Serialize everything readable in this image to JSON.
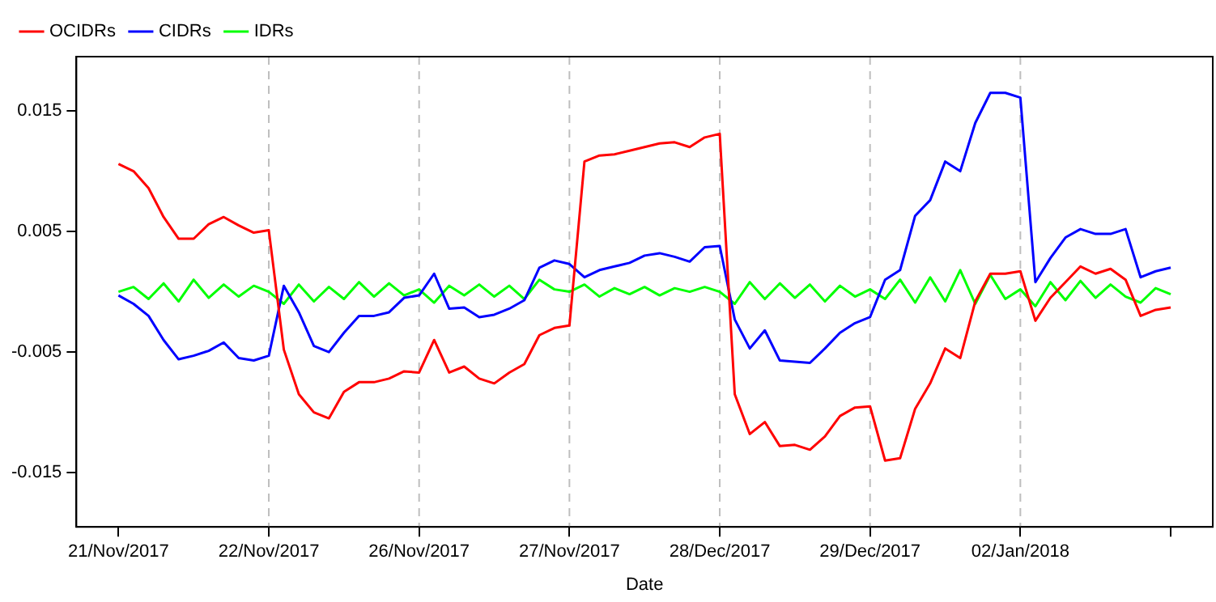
{
  "chart_data": {
    "type": "line",
    "xlabel": "Date",
    "categories": [
      "21/Nov/2017",
      null,
      null,
      null,
      null,
      null,
      null,
      null,
      null,
      null,
      "22/Nov/2017",
      null,
      null,
      null,
      null,
      null,
      null,
      null,
      null,
      null,
      "26/Nov/2017",
      null,
      null,
      null,
      null,
      null,
      null,
      null,
      null,
      null,
      "27/Nov/2017",
      null,
      null,
      null,
      null,
      null,
      null,
      null,
      null,
      null,
      "28/Dec/2017",
      null,
      null,
      null,
      null,
      null,
      null,
      null,
      null,
      null,
      "29/Dec/2017",
      null,
      null,
      null,
      null,
      null,
      null,
      null,
      null,
      null,
      "02/Jan/2018",
      null,
      null,
      null,
      null,
      null,
      null,
      null,
      null,
      null,
      null
    ],
    "ylim": [
      -0.0195,
      0.0195
    ],
    "yticks": [
      -0.015,
      -0.005,
      0.005,
      0.015
    ],
    "grid": false,
    "legend": "top left",
    "marker": "none",
    "line_style": "solid",
    "ref_lines": [
      {
        "axis": "x",
        "value": "22/Nov/2017",
        "color": "#bebebe",
        "line_style": "dashed"
      },
      {
        "axis": "x",
        "value": "26/Nov/2017",
        "color": "#bebebe",
        "line_style": "dashed"
      },
      {
        "axis": "x",
        "value": "27/Nov/2017",
        "color": "#bebebe",
        "line_style": "dashed"
      },
      {
        "axis": "x",
        "value": "28/Dec/2017",
        "color": "#bebebe",
        "line_style": "dashed"
      },
      {
        "axis": "x",
        "value": "29/Dec/2017",
        "color": "#bebebe",
        "line_style": "dashed"
      },
      {
        "axis": "x",
        "value": "02/Jan/2018",
        "color": "#bebebe",
        "line_style": "dashed"
      }
    ],
    "series": [
      {
        "name": "OCIDRs",
        "color": "#ff0000",
        "values": [
          0.0106,
          0.01,
          0.0086,
          0.0062,
          0.0044,
          0.0044,
          0.0056,
          0.0062,
          0.0055,
          0.0049,
          0.0051,
          -0.0048,
          -0.0085,
          -0.01,
          -0.0105,
          -0.0083,
          -0.0075,
          -0.0075,
          -0.0072,
          -0.0066,
          -0.0067,
          -0.004,
          -0.0067,
          -0.0062,
          -0.0072,
          -0.0076,
          -0.0067,
          -0.006,
          -0.0036,
          -0.003,
          -0.0028,
          0.0108,
          0.0113,
          0.0114,
          0.0117,
          0.012,
          0.0123,
          0.0124,
          0.012,
          0.0128,
          0.0131,
          -0.0085,
          -0.0118,
          -0.0108,
          -0.0128,
          -0.0127,
          -0.0131,
          -0.012,
          -0.0103,
          -0.0096,
          -0.0095,
          -0.014,
          -0.0138,
          -0.0097,
          -0.0076,
          -0.0047,
          -0.0055,
          -0.0008,
          0.0015,
          0.0015,
          0.0017,
          -0.0024,
          -0.0005,
          0.0008,
          0.0021,
          0.0015,
          0.0019,
          0.001,
          -0.002,
          -0.0015,
          -0.0013
        ]
      },
      {
        "name": "CIDRs",
        "color": "#0000ff",
        "values": [
          -0.0003,
          -0.001,
          -0.002,
          -0.004,
          -0.0056,
          -0.0053,
          -0.0049,
          -0.0042,
          -0.0055,
          -0.0057,
          -0.0053,
          0.0005,
          -0.0017,
          -0.0045,
          -0.005,
          -0.0034,
          -0.002,
          -0.002,
          -0.0017,
          -0.0005,
          -0.0003,
          0.0015,
          -0.0014,
          -0.0013,
          -0.0021,
          -0.0019,
          -0.0014,
          -0.0007,
          0.002,
          0.0026,
          0.0023,
          0.0012,
          0.0018,
          0.0021,
          0.0024,
          0.003,
          0.0032,
          0.0029,
          0.0025,
          0.0037,
          0.0038,
          -0.0023,
          -0.0047,
          -0.0032,
          -0.0057,
          -0.0058,
          -0.0059,
          -0.0047,
          -0.0034,
          -0.0026,
          -0.0021,
          0.001,
          0.0018,
          0.0063,
          0.0076,
          0.0108,
          0.01,
          0.014,
          0.0165,
          0.0165,
          0.0161,
          0.0008,
          0.0028,
          0.0045,
          0.0052,
          0.0048,
          0.0048,
          0.0052,
          0.0012,
          0.0017,
          0.002
        ]
      },
      {
        "name": "IDRs",
        "color": "#00ff00",
        "values": [
          0.0,
          0.0004,
          -0.0006,
          0.0007,
          -0.0008,
          0.001,
          -0.0005,
          0.0006,
          -0.0004,
          0.0005,
          0.0,
          -0.001,
          0.0006,
          -0.0008,
          0.0004,
          -0.0006,
          0.0008,
          -0.0004,
          0.0007,
          -0.0003,
          0.0002,
          -0.0009,
          0.0005,
          -0.0003,
          0.0006,
          -0.0004,
          0.0005,
          -0.0006,
          0.001,
          0.0002,
          0.0,
          0.0006,
          -0.0004,
          0.0003,
          -0.0002,
          0.0004,
          -0.0003,
          0.0003,
          0.0,
          0.0004,
          0.0,
          -0.001,
          0.0008,
          -0.0006,
          0.0007,
          -0.0005,
          0.0006,
          -0.0008,
          0.0005,
          -0.0004,
          0.0002,
          -0.0006,
          0.001,
          -0.0009,
          0.0012,
          -0.0008,
          0.0018,
          -0.001,
          0.0014,
          -0.0006,
          0.0002,
          -0.0012,
          0.0008,
          -0.0007,
          0.0009,
          -0.0005,
          0.0006,
          -0.0004,
          -0.0009,
          0.0003,
          -0.0002
        ]
      }
    ]
  }
}
